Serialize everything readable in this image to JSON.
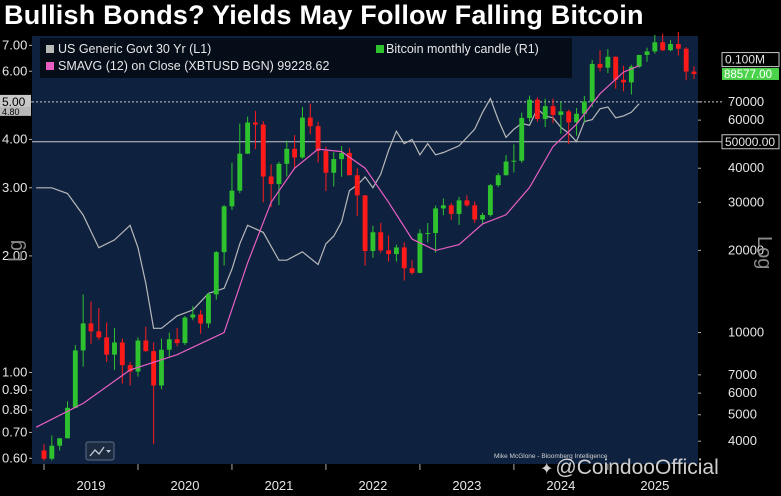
{
  "title": "Bullish Bonds? Yields May Follow Falling Bitcoin",
  "credit": "Mike McGlone - Bloomberg Intelligence",
  "watermark": "@CoindooOfficial",
  "watermark_icon": "binance-square-icon",
  "chart_icon": "line-chart-icon",
  "colors": {
    "background": "#000000",
    "plot_bg": "#0e2240",
    "yield_line": "#b8b8b8",
    "sma_line": "#e85fc2",
    "candle_up": "#2ec22e",
    "candle_down": "#ff1a1a",
    "ref_line": "#c8c8c8",
    "label_green": "#4cd34c"
  },
  "chart_data": {
    "type": "line",
    "left_axis_label": "Lg",
    "right_axis_label": "Log",
    "left_ticks": [
      "7.00",
      "6.00",
      "5.00",
      "4.00",
      "3.00",
      "2.00",
      "1.00",
      "0.90",
      "0.80",
      "0.70",
      "0.60"
    ],
    "left_tick_values": [
      7,
      6,
      5,
      4,
      3,
      2,
      1,
      0.9,
      0.8,
      0.7,
      0.6
    ],
    "right_ticks": [
      "70000",
      "60000",
      "50000",
      "40000",
      "30000",
      "20000",
      "10000",
      "7000",
      "6000",
      "5000",
      "4000"
    ],
    "right_tick_values": [
      70000,
      60000,
      50000,
      40000,
      30000,
      20000,
      10000,
      7000,
      6000,
      5000,
      4000
    ],
    "x_ticks": [
      "2019",
      "2020",
      "2021",
      "2022",
      "2023",
      "2024",
      "2025"
    ],
    "left_ylim": [
      0.58,
      7.4
    ],
    "right_ylim": [
      3300,
      122000
    ],
    "scale": "log",
    "legend_placement": "top-left",
    "legend": [
      {
        "label": "US Generic Govt 30 Yr  (L1)",
        "color": "#b8b8b8"
      },
      {
        "label": "SMAVG (12)  on Close (XBTUSD BGN) 99228.62",
        "color": "#e85fc2"
      },
      {
        "label": "Bitcoin monthly candle (R1)",
        "color": "#2ec22e"
      }
    ],
    "reference_lines": [
      {
        "axis": "left",
        "value": 5.0,
        "label": "5.00",
        "style": "dotted"
      },
      {
        "axis": "right",
        "value": 50000,
        "label": "50000.00",
        "style": "solid"
      }
    ],
    "value_labels": [
      {
        "axis": "left",
        "value": 4.8,
        "label": "4.80"
      },
      {
        "axis": "right",
        "value": 100000,
        "label": "0.100M"
      },
      {
        "axis": "right",
        "value": 88577,
        "label": "88577.00"
      }
    ],
    "series": [
      {
        "name": "US Generic Govt 30 Yr",
        "axis": "left",
        "x": [
          "2018-12",
          "2019-02",
          "2019-04",
          "2019-06",
          "2019-08",
          "2019-10",
          "2019-12",
          "2020-01",
          "2020-02",
          "2020-03",
          "2020-04",
          "2020-06",
          "2020-08",
          "2020-10",
          "2020-12",
          "2021-01",
          "2021-02",
          "2021-03",
          "2021-05",
          "2021-07",
          "2021-08",
          "2021-10",
          "2021-12",
          "2022-01",
          "2022-02",
          "2022-03",
          "2022-04",
          "2022-05",
          "2022-06",
          "2022-07",
          "2022-08",
          "2022-09",
          "2022-10",
          "2022-11",
          "2022-12",
          "2023-01",
          "2023-02",
          "2023-03",
          "2023-04",
          "2023-06",
          "2023-08",
          "2023-09",
          "2023-10",
          "2023-11",
          "2023-12",
          "2024-01",
          "2024-02",
          "2024-03",
          "2024-04",
          "2024-05",
          "2024-06",
          "2024-07",
          "2024-08",
          "2024-09",
          "2024-10",
          "2024-11",
          "2024-12",
          "2025-01",
          "2025-02",
          "2025-03",
          "2025-04",
          "2025-05"
        ],
        "values": [
          3.0,
          3.0,
          2.9,
          2.55,
          2.1,
          2.2,
          2.4,
          2.1,
          1.7,
          1.3,
          1.3,
          1.4,
          1.45,
          1.6,
          1.65,
          1.85,
          2.15,
          2.4,
          2.3,
          1.95,
          1.95,
          2.05,
          1.9,
          2.15,
          2.25,
          2.45,
          2.95,
          3.05,
          3.2,
          3.0,
          3.25,
          3.75,
          4.2,
          3.9,
          4.0,
          3.65,
          3.9,
          3.65,
          3.7,
          3.85,
          4.25,
          4.7,
          5.1,
          4.5,
          4.05,
          4.25,
          4.4,
          4.35,
          4.8,
          4.6,
          4.55,
          4.3,
          4.15,
          3.95,
          4.45,
          4.5,
          4.8,
          4.85,
          4.55,
          4.6,
          4.7,
          4.95
        ]
      },
      {
        "name": "SMAVG (12) on Close (XBTUSD BGN)",
        "axis": "right",
        "x": [
          "2018-12",
          "2019-06",
          "2019-12",
          "2020-06",
          "2020-12",
          "2021-03",
          "2021-06",
          "2021-09",
          "2021-12",
          "2022-03",
          "2022-06",
          "2022-09",
          "2022-12",
          "2023-03",
          "2023-06",
          "2023-09",
          "2023-12",
          "2024-03",
          "2024-06",
          "2024-09",
          "2024-12",
          "2025-03",
          "2025-05"
        ],
        "values": [
          4500,
          5500,
          7300,
          8300,
          10000,
          18000,
          30000,
          40000,
          47000,
          46000,
          40000,
          30000,
          22000,
          20000,
          21000,
          25000,
          27000,
          34000,
          48000,
          58000,
          75000,
          90000,
          95000
        ]
      },
      {
        "name": "Bitcoin monthly candle",
        "axis": "right",
        "type": "candlestick",
        "fields": [
          "month",
          "open",
          "high",
          "low",
          "close"
        ],
        "values": [
          [
            "2019-01",
            3700,
            3900,
            3400,
            3450
          ],
          [
            "2019-02",
            3450,
            4200,
            3400,
            3850
          ],
          [
            "2019-03",
            3850,
            4100,
            3700,
            4100
          ],
          [
            "2019-04",
            4100,
            5600,
            4100,
            5300
          ],
          [
            "2019-05",
            5300,
            9000,
            5300,
            8600
          ],
          [
            "2019-06",
            8600,
            13800,
            7500,
            10800
          ],
          [
            "2019-07",
            10800,
            13000,
            9100,
            10100
          ],
          [
            "2019-08",
            10100,
            12300,
            9400,
            9600
          ],
          [
            "2019-09",
            9600,
            10900,
            7800,
            8300
          ],
          [
            "2019-10",
            8300,
            10400,
            7300,
            9200
          ],
          [
            "2019-11",
            9200,
            9500,
            6500,
            7600
          ],
          [
            "2019-12",
            7600,
            7800,
            6400,
            7200
          ],
          [
            "2020-01",
            7200,
            9600,
            6900,
            9350
          ],
          [
            "2020-02",
            9350,
            10500,
            8500,
            8550
          ],
          [
            "2020-03",
            8550,
            9200,
            3900,
            6400
          ],
          [
            "2020-04",
            6400,
            9500,
            6200,
            8650
          ],
          [
            "2020-05",
            8650,
            10000,
            8100,
            9450
          ],
          [
            "2020-06",
            9450,
            10400,
            8900,
            9150
          ],
          [
            "2020-07",
            9150,
            11500,
            9000,
            11350
          ],
          [
            "2020-08",
            11350,
            12500,
            11100,
            11650
          ],
          [
            "2020-09",
            11650,
            12100,
            9900,
            10800
          ],
          [
            "2020-10",
            10800,
            14000,
            10400,
            13800
          ],
          [
            "2020-11",
            13800,
            19900,
            13200,
            19700
          ],
          [
            "2020-12",
            19700,
            29300,
            17600,
            29000
          ],
          [
            "2021-01",
            29000,
            41900,
            28100,
            33100
          ],
          [
            "2021-02",
            33100,
            58300,
            32400,
            45200
          ],
          [
            "2021-03",
            45200,
            61800,
            45100,
            58800
          ],
          [
            "2021-04",
            58800,
            64800,
            47000,
            57800
          ],
          [
            "2021-05",
            57800,
            59500,
            30000,
            37300
          ],
          [
            "2021-06",
            37300,
            41300,
            28800,
            35000
          ],
          [
            "2021-07",
            35000,
            42200,
            29300,
            41500
          ],
          [
            "2021-08",
            41500,
            50500,
            37300,
            47100
          ],
          [
            "2021-09",
            47100,
            52900,
            39600,
            43800
          ],
          [
            "2021-10",
            43800,
            67000,
            43300,
            61300
          ],
          [
            "2021-11",
            61300,
            69000,
            53300,
            57000
          ],
          [
            "2021-12",
            57000,
            59100,
            42000,
            46300
          ],
          [
            "2022-01",
            46300,
            48000,
            33000,
            38500
          ],
          [
            "2022-02",
            38500,
            45800,
            34300,
            43200
          ],
          [
            "2022-03",
            43200,
            48200,
            37200,
            45500
          ],
          [
            "2022-04",
            45500,
            47400,
            37700,
            37700
          ],
          [
            "2022-05",
            37700,
            40000,
            26700,
            31800
          ],
          [
            "2022-06",
            31800,
            31900,
            17600,
            19900
          ],
          [
            "2022-07",
            19900,
            24600,
            18800,
            23300
          ],
          [
            "2022-08",
            23300,
            25200,
            19600,
            20000
          ],
          [
            "2022-09",
            20000,
            22700,
            18200,
            19400
          ],
          [
            "2022-10",
            19400,
            21000,
            18200,
            20500
          ],
          [
            "2022-11",
            20500,
            21400,
            15500,
            17200
          ],
          [
            "2022-12",
            17200,
            18400,
            16300,
            16550
          ],
          [
            "2023-01",
            16550,
            23900,
            16500,
            23100
          ],
          [
            "2023-02",
            23100,
            25200,
            21400,
            23150
          ],
          [
            "2023-03",
            23150,
            29200,
            19600,
            28500
          ],
          [
            "2023-04",
            28500,
            31000,
            26900,
            29250
          ],
          [
            "2023-05",
            29250,
            29800,
            25900,
            27200
          ],
          [
            "2023-06",
            27200,
            31400,
            24800,
            30500
          ],
          [
            "2023-07",
            30500,
            31800,
            28900,
            29250
          ],
          [
            "2023-08",
            29250,
            30200,
            25200,
            25950
          ],
          [
            "2023-09",
            25950,
            27500,
            24900,
            26950
          ],
          [
            "2023-10",
            26950,
            35000,
            26600,
            34650
          ],
          [
            "2023-11",
            34650,
            38400,
            34100,
            37700
          ],
          [
            "2023-12",
            37700,
            44700,
            37600,
            42300
          ],
          [
            "2024-01",
            42300,
            48900,
            38600,
            42600
          ],
          [
            "2024-02",
            42600,
            63900,
            41900,
            61100
          ],
          [
            "2024-03",
            61100,
            73800,
            59300,
            71300
          ],
          [
            "2024-04",
            71300,
            72700,
            59200,
            60600
          ],
          [
            "2024-05",
            60600,
            71900,
            56600,
            67500
          ],
          [
            "2024-06",
            67500,
            71900,
            58500,
            62700
          ],
          [
            "2024-07",
            62700,
            70000,
            53500,
            64600
          ],
          [
            "2024-08",
            64600,
            65600,
            49100,
            58900
          ],
          [
            "2024-09",
            58900,
            66400,
            52600,
            63300
          ],
          [
            "2024-10",
            63300,
            73600,
            58900,
            70200
          ],
          [
            "2024-11",
            70200,
            99700,
            66900,
            96400
          ],
          [
            "2024-12",
            96400,
            108300,
            90600,
            93400
          ],
          [
            "2025-01",
            93400,
            109300,
            89200,
            102400
          ],
          [
            "2025-02",
            102400,
            102700,
            78200,
            84300
          ],
          [
            "2025-03",
            84300,
            95000,
            76600,
            82500
          ],
          [
            "2025-04",
            82500,
            95800,
            74500,
            94200
          ],
          [
            "2025-05",
            94200,
            104000,
            93300,
            104000
          ],
          [
            "2025-06",
            104000,
            110600,
            98200,
            107100
          ],
          [
            "2025-07",
            107100,
            123000,
            105100,
            115700
          ],
          [
            "2025-08",
            115700,
            124400,
            107400,
            108200
          ],
          [
            "2025-09",
            108200,
            117900,
            107300,
            114000
          ],
          [
            "2025-10",
            114000,
            126200,
            103500,
            109600
          ],
          [
            "2025-11",
            109600,
            111000,
            84000,
            90400
          ],
          [
            "2025-12",
            90400,
            94500,
            85000,
            88577
          ]
        ]
      }
    ]
  }
}
